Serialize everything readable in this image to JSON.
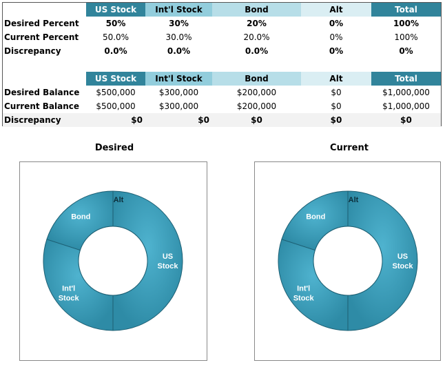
{
  "pct_table": {
    "headers": [
      "US Stock",
      "Int'l Stock",
      "Bond",
      "Alt",
      "Total"
    ],
    "rows": [
      {
        "label": "Desired Percent",
        "values": [
          "50%",
          "30%",
          "20%",
          "0%",
          "100%"
        ]
      },
      {
        "label": "Current Percent",
        "values": [
          "50.0%",
          "30.0%",
          "20.0%",
          "0%",
          "100%"
        ]
      },
      {
        "label": "Discrepancy",
        "values": [
          "0.0%",
          "0.0%",
          "0.0%",
          "0%",
          "0%"
        ]
      }
    ]
  },
  "bal_table": {
    "headers": [
      "US Stock",
      "Int'l Stock",
      "Bond",
      "Alt",
      "Total"
    ],
    "rows": [
      {
        "label": "Desired Balance",
        "values": [
          "$500,000",
          "$300,000",
          "$200,000",
          "$0",
          "$1,000,000"
        ]
      },
      {
        "label": "Current Balance",
        "values": [
          "$500,000",
          "$300,000",
          "$200,000",
          "$0",
          "$1,000,000"
        ]
      },
      {
        "label": "Discrepancy",
        "values": [
          "$0",
          "$0",
          "$0",
          "$0",
          "$0"
        ]
      }
    ]
  },
  "colors": {
    "header_dark": "#31849b",
    "header_mid": "#92cddc",
    "header_light": "#b7dee8",
    "header_pale": "#daeef3",
    "ring": "#2e8ba6"
  },
  "chart_data": [
    {
      "type": "pie",
      "title": "Desired",
      "categories": [
        "US Stock",
        "Int'l Stock",
        "Bond",
        "Alt"
      ],
      "values": [
        50,
        30,
        20,
        0
      ]
    },
    {
      "type": "pie",
      "title": "Current",
      "categories": [
        "US Stock",
        "Int'l Stock",
        "Bond",
        "Alt"
      ],
      "values": [
        50,
        30,
        20,
        0
      ]
    }
  ]
}
